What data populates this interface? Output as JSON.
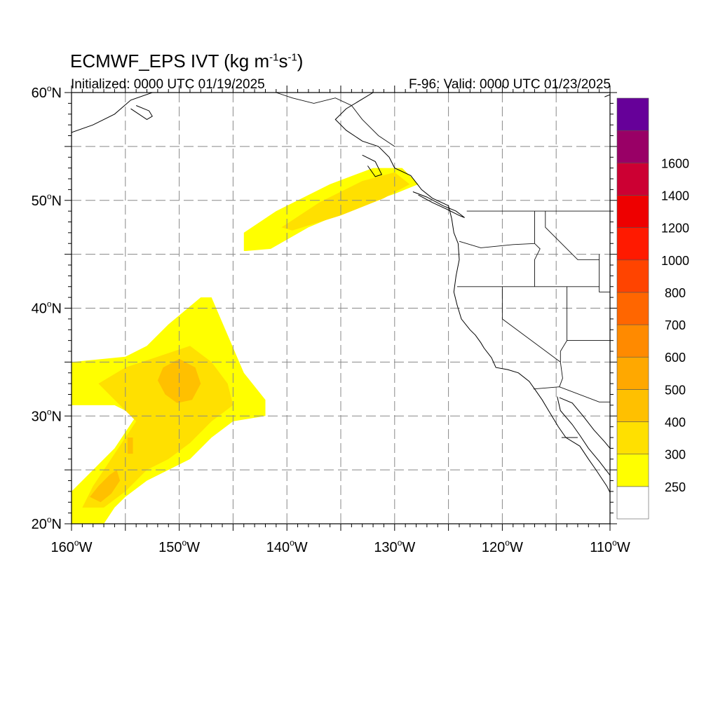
{
  "title": {
    "main": "ECMWF_EPS IVT (kg m",
    "exp1": "-1",
    "mid": "s",
    "exp2": "-1",
    "close": ")"
  },
  "subtitle_left": "Initialized: 0000 UTC 01/19/2025",
  "subtitle_right": "F-96: Valid: 0000 UTC 01/23/2025",
  "map": {
    "extent": {
      "lon_min": -160,
      "lon_max": -110,
      "lat_min": 20,
      "lat_max": 60
    },
    "grid_lons": [
      -155,
      -150,
      -145,
      -140,
      -135,
      -130,
      -125,
      -120,
      -115
    ],
    "grid_lats": [
      25,
      30,
      35,
      40,
      45,
      50,
      55
    ],
    "lon_ticks": [
      {
        "lon": -160,
        "label": "160",
        "hemi": "W"
      },
      {
        "lon": -150,
        "label": "150",
        "hemi": "W"
      },
      {
        "lon": -140,
        "label": "140",
        "hemi": "W"
      },
      {
        "lon": -130,
        "label": "130",
        "hemi": "W"
      },
      {
        "lon": -120,
        "label": "120",
        "hemi": "W"
      },
      {
        "lon": -110,
        "label": "110",
        "hemi": "W"
      }
    ],
    "lat_ticks": [
      {
        "lat": 20,
        "label": "20",
        "hemi": "N"
      },
      {
        "lat": 30,
        "label": "30",
        "hemi": "N"
      },
      {
        "lat": 40,
        "label": "40",
        "hemi": "N"
      },
      {
        "lat": 50,
        "label": "50",
        "hemi": "N"
      },
      {
        "lat": 60,
        "label": "60",
        "hemi": "N"
      }
    ],
    "ivt_regions": [
      {
        "level": 250,
        "color": "#ffff00",
        "polygon": [
          [
            -144,
            45.3
          ],
          [
            -144,
            47
          ],
          [
            -141,
            49
          ],
          [
            -136,
            51.5
          ],
          [
            -132,
            53
          ],
          [
            -129.3,
            53
          ],
          [
            -127.8,
            51.5
          ],
          [
            -130,
            50.6
          ],
          [
            -133,
            49.6
          ],
          [
            -138,
            47.5
          ],
          [
            -141.5,
            45.5
          ],
          [
            -143.8,
            45.3
          ]
        ]
      },
      {
        "level": 300,
        "color": "#ffe000",
        "polygon": [
          [
            -140.5,
            47.5
          ],
          [
            -137,
            49.8
          ],
          [
            -133,
            51.8
          ],
          [
            -130,
            52.6
          ],
          [
            -128.6,
            51.5
          ],
          [
            -131,
            50.2
          ],
          [
            -135,
            48.6
          ],
          [
            -139.5,
            47.2
          ]
        ]
      },
      {
        "level": 250,
        "color": "#ffff00",
        "polygon": [
          [
            -160,
            35
          ],
          [
            -155,
            35.5
          ],
          [
            -153,
            36.5
          ],
          [
            -151,
            38.5
          ],
          [
            -148,
            41
          ],
          [
            -147,
            41
          ],
          [
            -145.5,
            37.5
          ],
          [
            -144,
            34
          ],
          [
            -142,
            31.5
          ],
          [
            -142,
            30
          ],
          [
            -145,
            29.5
          ],
          [
            -147,
            28
          ],
          [
            -149,
            26
          ],
          [
            -153,
            24
          ],
          [
            -155,
            22.5
          ],
          [
            -156,
            21.5
          ],
          [
            -157,
            20
          ],
          [
            -160,
            20
          ],
          [
            -160,
            23
          ],
          [
            -156,
            27
          ],
          [
            -154,
            30
          ],
          [
            -156,
            31
          ],
          [
            -160,
            31
          ]
        ]
      },
      {
        "level": 300,
        "color": "#ffe000",
        "polygon": [
          [
            -157.5,
            33
          ],
          [
            -155,
            34.5
          ],
          [
            -152,
            35.5
          ],
          [
            -149,
            36.5
          ],
          [
            -147,
            35
          ],
          [
            -145.5,
            33
          ],
          [
            -145,
            31
          ],
          [
            -147,
            29.5
          ],
          [
            -149,
            27.5
          ],
          [
            -151,
            26
          ],
          [
            -153,
            25
          ],
          [
            -155,
            23
          ],
          [
            -157,
            21.5
          ],
          [
            -159,
            21.5
          ],
          [
            -158,
            23.5
          ],
          [
            -156,
            26.5
          ],
          [
            -154,
            29.5
          ],
          [
            -156,
            31.5
          ]
        ]
      },
      {
        "level": 400,
        "color": "#ffc000",
        "polygon": [
          [
            -151.5,
            34.5
          ],
          [
            -150,
            35.3
          ],
          [
            -148.5,
            34.5
          ],
          [
            -148,
            33
          ],
          [
            -148.8,
            31.5
          ],
          [
            -150.2,
            31.2
          ],
          [
            -151.3,
            32
          ],
          [
            -152,
            33.3
          ]
        ]
      },
      {
        "level": 400,
        "color": "#ffc000",
        "polygon": [
          [
            -158.3,
            22.5
          ],
          [
            -157.5,
            23.5
          ],
          [
            -156.5,
            24.5
          ],
          [
            -155.8,
            25
          ],
          [
            -155.5,
            24
          ],
          [
            -156.3,
            22.8
          ],
          [
            -157.3,
            22
          ]
        ]
      },
      {
        "level": 400,
        "color": "#ffc000",
        "polygon": [
          [
            -154.8,
            28
          ],
          [
            -154.3,
            28
          ],
          [
            -154.3,
            26.5
          ],
          [
            -154.8,
            26.5
          ]
        ]
      }
    ],
    "land_outlines": [
      {
        "name": "west-coast",
        "points": [
          [
            -132,
            60
          ],
          [
            -134.5,
            58.5
          ],
          [
            -135.5,
            57.5
          ],
          [
            -134.5,
            56.5
          ],
          [
            -133,
            55.5
          ],
          [
            -131.5,
            55
          ],
          [
            -130.5,
            54
          ],
          [
            -130,
            53
          ],
          [
            -128.5,
            52.3
          ],
          [
            -127.5,
            51
          ],
          [
            -126.5,
            50.2
          ],
          [
            -125,
            49.5
          ],
          [
            -124.7,
            48.3
          ],
          [
            -124.5,
            47
          ],
          [
            -124.1,
            46
          ],
          [
            -124,
            44.5
          ],
          [
            -124.3,
            43
          ],
          [
            -124.5,
            41.5
          ],
          [
            -124.2,
            40.3
          ],
          [
            -123.8,
            39
          ],
          [
            -123,
            38
          ],
          [
            -122.5,
            37.5
          ],
          [
            -122,
            36.8
          ],
          [
            -121.7,
            36.3
          ],
          [
            -121,
            35.4
          ],
          [
            -120.6,
            34.5
          ],
          [
            -119.5,
            34.3
          ],
          [
            -118.5,
            34
          ],
          [
            -117.5,
            33.2
          ],
          [
            -117,
            32.5
          ],
          [
            -116.3,
            31.5
          ],
          [
            -115.7,
            30.5
          ],
          [
            -114.8,
            29
          ],
          [
            -114.1,
            28
          ],
          [
            -112.8,
            27.2
          ],
          [
            -112,
            26
          ],
          [
            -111.3,
            25
          ],
          [
            -110.3,
            23.5
          ],
          [
            -110,
            22.9
          ]
        ]
      },
      {
        "name": "gulf-of-california",
        "points": [
          [
            -114.9,
            31.8
          ],
          [
            -114.6,
            30.5
          ],
          [
            -113.5,
            29.2
          ],
          [
            -112.8,
            28.2
          ],
          [
            -112,
            27
          ],
          [
            -111,
            25.8
          ],
          [
            -110,
            24.5
          ]
        ]
      },
      {
        "name": "mexico-mainland-coast",
        "points": [
          [
            -114.7,
            31.7
          ],
          [
            -113.5,
            31.2
          ],
          [
            -112.5,
            30
          ],
          [
            -111.5,
            28.7
          ],
          [
            -110.5,
            27.6
          ],
          [
            -109.5,
            26.4
          ],
          [
            -109,
            25.6
          ]
        ]
      },
      {
        "name": "alaska-coast",
        "points": [
          [
            -160,
            56.3
          ],
          [
            -158,
            57
          ],
          [
            -156,
            58
          ],
          [
            -154.5,
            59.3
          ],
          [
            -152.5,
            60
          ]
        ]
      },
      {
        "name": "kodiak",
        "points": [
          [
            -154.5,
            58.5
          ],
          [
            -153,
            57.5
          ],
          [
            -152.5,
            57.8
          ],
          [
            -152.8,
            58.3
          ],
          [
            -154,
            58.8
          ]
        ]
      },
      {
        "name": "vancouver-island",
        "points": [
          [
            -128.3,
            50.8
          ],
          [
            -127,
            50.3
          ],
          [
            -125.5,
            49.5
          ],
          [
            -124.3,
            49
          ],
          [
            -123.5,
            48.4
          ],
          [
            -124,
            48.6
          ],
          [
            -125.2,
            49.2
          ],
          [
            -126.5,
            49.8
          ],
          [
            -127.8,
            50.5
          ]
        ]
      },
      {
        "name": "haida-gwaii",
        "points": [
          [
            -133,
            54.2
          ],
          [
            -131.8,
            53.6
          ],
          [
            -131.2,
            52.4
          ],
          [
            -131.8,
            52.2
          ],
          [
            -132.5,
            53.2
          ]
        ]
      },
      {
        "name": "far-se-coast",
        "points": [
          [
            -110.5,
            59.6
          ],
          [
            -110,
            59.8
          ]
        ]
      }
    ],
    "borders": [
      {
        "name": "us-canada",
        "points": [
          [
            -123.3,
            49
          ],
          [
            -110,
            49
          ]
        ]
      },
      {
        "name": "alaska-canada",
        "points": [
          [
            -141,
            60
          ],
          [
            -139.5,
            59.5
          ],
          [
            -137.5,
            59
          ],
          [
            -135.5,
            59.5
          ],
          [
            -134,
            58.8
          ],
          [
            -133,
            57.5
          ],
          [
            -131.5,
            56
          ],
          [
            -130,
            55
          ]
        ]
      },
      {
        "name": "or-wa",
        "points": [
          [
            -124,
            46.2
          ],
          [
            -122,
            45.6
          ],
          [
            -119,
            45.9
          ],
          [
            -117,
            46
          ]
        ]
      },
      {
        "name": "wa-id",
        "points": [
          [
            -117,
            49
          ],
          [
            -117,
            46
          ]
        ]
      },
      {
        "name": "id-or",
        "points": [
          [
            -117,
            46
          ],
          [
            -116.5,
            45.5
          ],
          [
            -117,
            44.5
          ],
          [
            -117,
            42
          ]
        ]
      },
      {
        "name": "ca-or-nv-id",
        "points": [
          [
            -124.2,
            42
          ],
          [
            -111,
            42
          ]
        ]
      },
      {
        "name": "ca-nv",
        "points": [
          [
            -120,
            42
          ],
          [
            -120,
            39
          ],
          [
            -114.6,
            35
          ]
        ]
      },
      {
        "name": "nv-ut-az",
        "points": [
          [
            -114,
            42
          ],
          [
            -114,
            37
          ],
          [
            -114.6,
            36
          ],
          [
            -114.6,
            35
          ]
        ]
      },
      {
        "name": "ut-az",
        "points": [
          [
            -114,
            37
          ],
          [
            -110,
            37
          ]
        ]
      },
      {
        "name": "id-mt",
        "points": [
          [
            -116,
            49
          ],
          [
            -116,
            47.5
          ],
          [
            -114.5,
            46
          ],
          [
            -113,
            44.5
          ],
          [
            -111,
            44.5
          ]
        ]
      },
      {
        "name": "mt-wy",
        "points": [
          [
            -111,
            45
          ],
          [
            -111,
            41.5
          ],
          [
            -110,
            41.5
          ]
        ]
      },
      {
        "name": "az-ca",
        "points": [
          [
            -114.6,
            35
          ],
          [
            -114.4,
            33.5
          ],
          [
            -114.7,
            32.7
          ]
        ]
      },
      {
        "name": "us-mexico",
        "points": [
          [
            -117.1,
            32.5
          ],
          [
            -114.7,
            32.7
          ],
          [
            -111,
            31.3
          ],
          [
            -110,
            31.3
          ]
        ]
      },
      {
        "name": "baja-bcs",
        "points": [
          [
            -114.5,
            28
          ],
          [
            -113,
            28
          ]
        ]
      },
      {
        "name": "sonora-sinaloa",
        "points": [
          [
            -109,
            26.5
          ],
          [
            -110,
            27.2
          ]
        ]
      }
    ]
  },
  "colorbar": {
    "colors": [
      "#ffffff",
      "#ffff00",
      "#ffe000",
      "#ffc000",
      "#ffa800",
      "#ff8a00",
      "#ff6600",
      "#ff4400",
      "#ff1a00",
      "#ee0000",
      "#cc0033",
      "#990066",
      "#660099"
    ],
    "labels": [
      "250",
      "300",
      "400",
      "500",
      "600",
      "700",
      "800",
      "1000",
      "1200",
      "1400",
      "1600"
    ]
  }
}
